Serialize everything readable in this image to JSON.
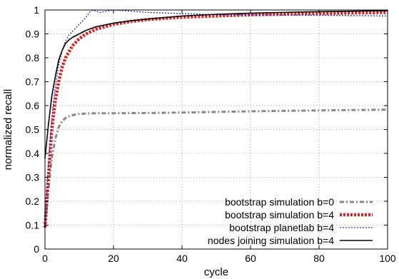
{
  "chart_data": {
    "type": "line",
    "title": "",
    "xlabel": "cycle",
    "ylabel": "normalized recall",
    "xlim": [
      0,
      100
    ],
    "ylim": [
      0,
      1
    ],
    "xticks": [
      "0",
      "20",
      "40",
      "60",
      "80",
      "100"
    ],
    "yticks": [
      "0",
      "0.1",
      "0.2",
      "0.3",
      "0.4",
      "0.5",
      "0.6",
      "0.7",
      "0.8",
      "0.9",
      "1"
    ],
    "grid": true,
    "legend_position": "bottom-right",
    "series": [
      {
        "name": "bootstrap simulation b=0",
        "color": "#888888",
        "style": "dashdot",
        "x": [
          0,
          1,
          2,
          3,
          4,
          5,
          6,
          7,
          8,
          10,
          12,
          15,
          20,
          30,
          40,
          60,
          80,
          100
        ],
        "y": [
          0.09,
          0.25,
          0.38,
          0.46,
          0.51,
          0.535,
          0.548,
          0.555,
          0.56,
          0.565,
          0.567,
          0.568,
          0.568,
          0.569,
          0.571,
          0.576,
          0.58,
          0.583
        ]
      },
      {
        "name": "bootstrap simulation b=4",
        "color": "#dd2222",
        "style": "thick-dotted",
        "x": [
          0,
          1,
          2,
          3,
          4,
          5,
          6,
          8,
          10,
          12,
          15,
          20,
          25,
          30,
          40,
          50,
          60,
          80,
          100
        ],
        "y": [
          0.09,
          0.3,
          0.5,
          0.62,
          0.7,
          0.76,
          0.8,
          0.85,
          0.88,
          0.9,
          0.92,
          0.94,
          0.952,
          0.96,
          0.97,
          0.975,
          0.98,
          0.985,
          0.99
        ]
      },
      {
        "name": "bootstrap planetlab b=4",
        "color": "#2233cc",
        "style": "dotted",
        "x": [
          0,
          1,
          2,
          3,
          4,
          5,
          6,
          7,
          8,
          10,
          12,
          13,
          14,
          16,
          18,
          20,
          25,
          30,
          40,
          50,
          60,
          80,
          100
        ],
        "y": [
          0.09,
          0.35,
          0.55,
          0.68,
          0.77,
          0.83,
          0.87,
          0.895,
          0.91,
          0.94,
          0.97,
          0.99,
          1.0,
          0.99,
          0.995,
          1.0,
          0.995,
          0.99,
          0.985,
          0.98,
          0.98,
          0.978,
          0.975
        ]
      },
      {
        "name": "nodes joining simulation b=4",
        "color": "#000000",
        "style": "solid",
        "x": [
          0,
          0.5,
          1,
          1.5,
          2,
          3,
          4,
          5,
          6,
          7,
          8,
          10,
          12,
          15,
          20,
          25,
          30,
          40,
          50,
          60,
          80,
          100
        ],
        "y": [
          0.38,
          0.45,
          0.52,
          0.58,
          0.64,
          0.72,
          0.79,
          0.83,
          0.86,
          0.875,
          0.885,
          0.9,
          0.915,
          0.93,
          0.945,
          0.955,
          0.962,
          0.975,
          0.982,
          0.987,
          0.993,
          0.997
        ]
      }
    ]
  }
}
